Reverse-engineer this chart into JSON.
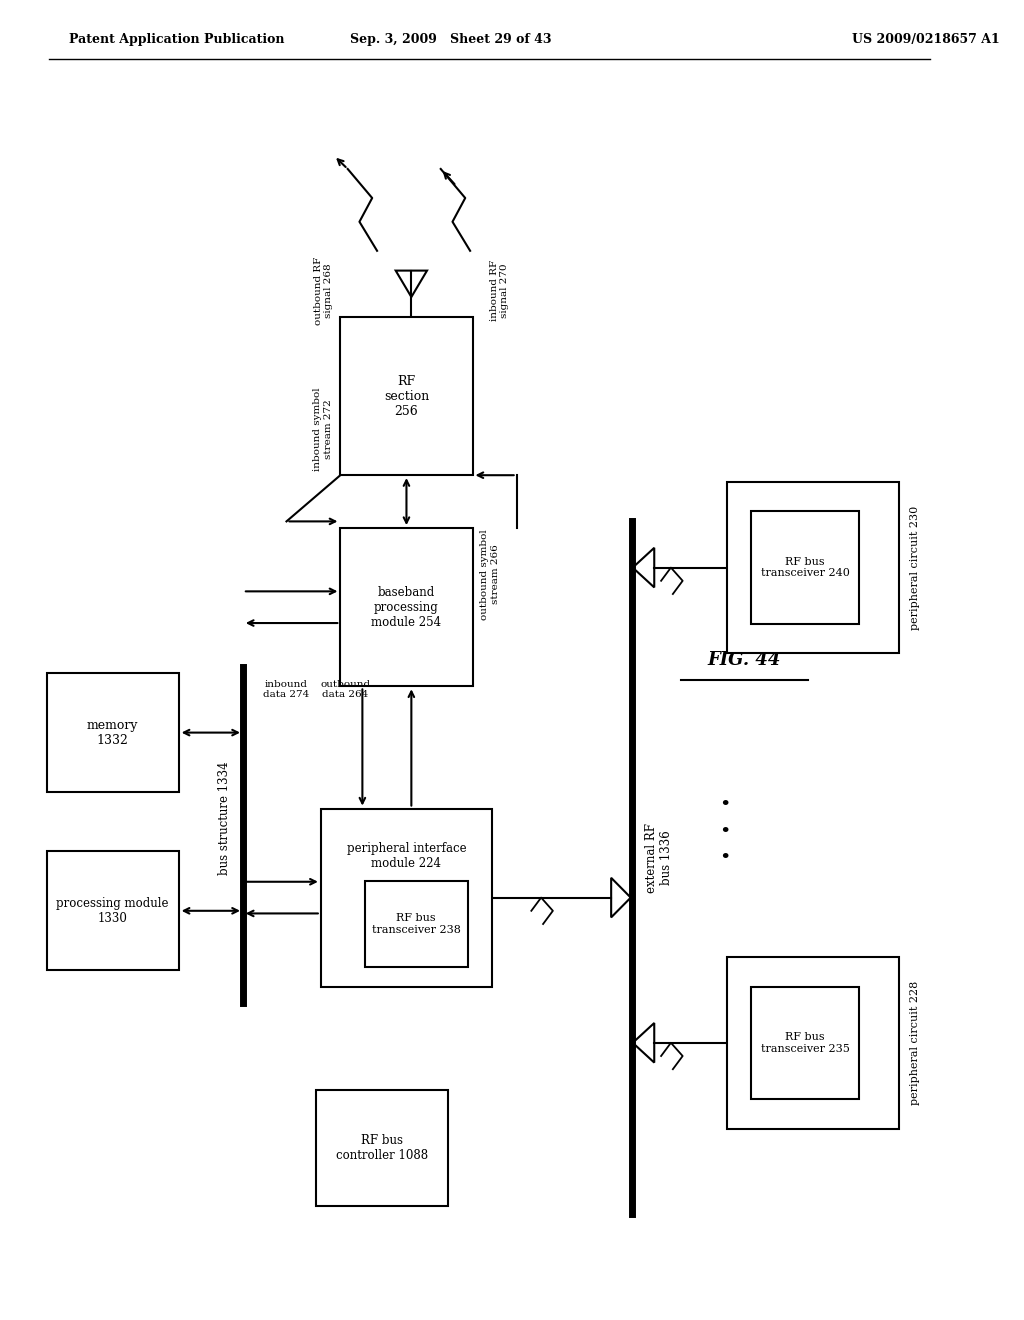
{
  "header_left": "Patent Application Publication",
  "header_mid": "Sep. 3, 2009   Sheet 29 of 43",
  "header_right": "US 2009/0218657 A1",
  "fig_label": "FIG. 44",
  "bg_color": "#ffffff"
}
